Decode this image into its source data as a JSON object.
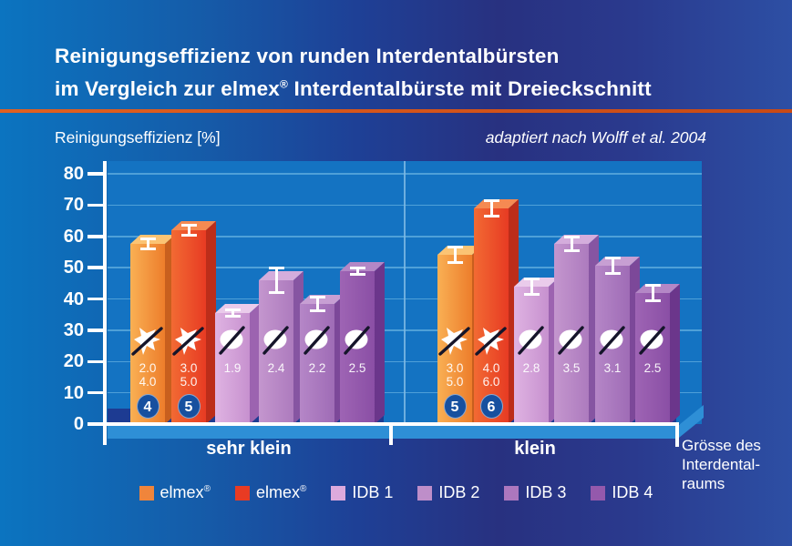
{
  "title": {
    "line1": "Reinigungseffizienz von runden Interdentalbürsten",
    "line2_pre": "im Vergleich zur elmex",
    "line2_sup": "®",
    "line2_post": " Interdentalbürste mit Dreieckschnitt"
  },
  "x_axis_note": [
    "Grösse des",
    "Interdental-",
    "raums"
  ],
  "legend": [
    {
      "label": "elmex",
      "sup": "®",
      "color": "#F0853B"
    },
    {
      "label": "elmex",
      "sup": "®",
      "color": "#E83B23"
    },
    {
      "label": "IDB 1",
      "sup": "",
      "color": "#DCAADD"
    },
    {
      "label": "IDB 2",
      "sup": "",
      "color": "#BE8EC9"
    },
    {
      "label": "IDB 3",
      "sup": "",
      "color": "#AC77BE"
    },
    {
      "label": "IDB 4",
      "sup": "",
      "color": "#9459AC"
    }
  ],
  "chart_data": {
    "type": "bar",
    "title": "Reinigungseffizienz von runden Interdentalbürsten im Vergleich zur elmex® Interdentalbürste mit Dreieckschnitt",
    "ylabel": "Reinigungseffizienz [%]",
    "xlabel": "Grösse des Interdentalraums",
    "source": "adaptiert nach Wolff et al. 2004",
    "ylim": [
      0,
      80
    ],
    "yticks": [
      0,
      10,
      20,
      30,
      40,
      50,
      60,
      70,
      80
    ],
    "grid": true,
    "legend_position": "bottom",
    "categories": [
      "sehr klein",
      "klein"
    ],
    "series": [
      {
        "key": "elmex_a",
        "name": "elmex®",
        "cross_section": "triangle",
        "values": [
          57.5,
          54
        ],
        "errors": [
          2,
          3
        ],
        "size_labels": [
          [
            "2.0",
            "4.0"
          ],
          [
            "3.0",
            "5.0"
          ]
        ],
        "badges": [
          "4",
          "5"
        ]
      },
      {
        "key": "elmex_b",
        "name": "elmex®",
        "cross_section": "triangle",
        "values": [
          62,
          69
        ],
        "errors": [
          2,
          3
        ],
        "size_labels": [
          [
            "3.0",
            "5.0"
          ],
          [
            "4.0",
            "6.0"
          ]
        ],
        "badges": [
          "5",
          "6"
        ]
      },
      {
        "key": "idb1",
        "name": "IDB 1",
        "cross_section": "round",
        "values": [
          35.5,
          44
        ],
        "errors": [
          1.5,
          3
        ],
        "size_labels": [
          [
            "1.9"
          ],
          [
            "2.8"
          ]
        ],
        "badges": [
          null,
          null
        ]
      },
      {
        "key": "idb2",
        "name": "IDB 2",
        "cross_section": "round",
        "values": [
          46,
          57.5
        ],
        "errors": [
          4.5,
          2.5
        ],
        "size_labels": [
          [
            "2.4"
          ],
          [
            "3.5"
          ]
        ],
        "badges": [
          null,
          null
        ]
      },
      {
        "key": "idb3",
        "name": "IDB 3",
        "cross_section": "round",
        "values": [
          38.5,
          50.5
        ],
        "errors": [
          2.5,
          3
        ],
        "size_labels": [
          [
            "2.2"
          ],
          [
            "3.1"
          ]
        ],
        "badges": [
          null,
          null
        ]
      },
      {
        "key": "idb4",
        "name": "IDB 4",
        "cross_section": "round",
        "values": [
          49,
          42
        ],
        "errors": [
          1.5,
          3
        ],
        "size_labels": [
          [
            "2.5"
          ],
          [
            "2.5"
          ]
        ],
        "badges": [
          null,
          null
        ]
      }
    ]
  },
  "colors": {
    "background_left": "#0B74C0",
    "background_mid": "#283180",
    "background_right": "#2D4FA4",
    "divider": "#D85A1E",
    "plot_background": "#1473C2",
    "gridline": "#4FA0D8",
    "floor": "#2E8FD6",
    "bar_shadow": "#1D3B92",
    "badge": "#17509F",
    "series": {
      "elmex_a": {
        "front_left": "#F9B054",
        "front_right": "#ED7D2B",
        "top": "#FBC474",
        "side": "#C85F1E"
      },
      "elmex_b": {
        "front_left": "#F26A33",
        "front_right": "#E73B23",
        "top": "#F58A52",
        "side": "#BC2D1A"
      },
      "idb1": {
        "front_left": "#DFB3E2",
        "front_right": "#C791CF",
        "top": "#EACBEB",
        "side": "#9C63B0"
      },
      "idb2": {
        "front_left": "#C496CE",
        "front_right": "#AD7BBE",
        "top": "#D4ADDC",
        "side": "#8655A2"
      },
      "idb3": {
        "front_left": "#B586C7",
        "front_right": "#9F6CB6",
        "top": "#C79FD3",
        "side": "#7C4899"
      },
      "idb4": {
        "front_left": "#9E64B4",
        "front_right": "#8A4FA5",
        "top": "#B487C6",
        "side": "#6B368B"
      }
    }
  }
}
